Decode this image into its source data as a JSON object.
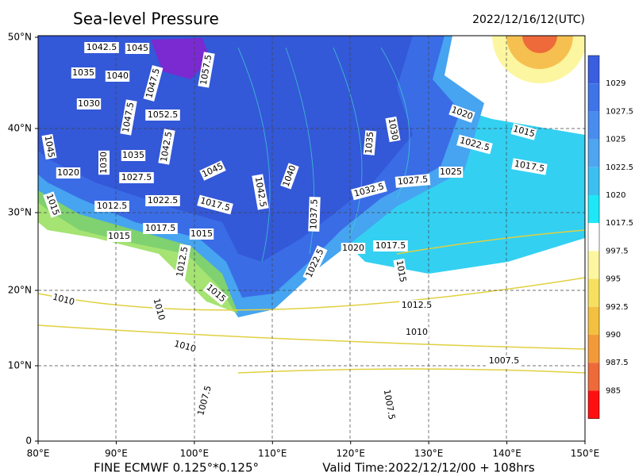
{
  "header": {
    "title": "Sea-level Pressure",
    "valid_at": "2022/12/16/12(UTC)"
  },
  "map": {
    "lat_ticks": [
      "0",
      "10°N",
      "20°N",
      "30°N",
      "40°N",
      "50°N"
    ],
    "lon_ticks": [
      "80°E",
      "90°E",
      "100°E",
      "110°E",
      "120°E",
      "130°E",
      "140°E",
      "150°E"
    ],
    "contour_labels": [
      "1042.5",
      "1045",
      "1035",
      "1040",
      "1047.5",
      "1057.5",
      "1030",
      "1047.5",
      "1052.5",
      "1045",
      "1030",
      "1035",
      "1042.5",
      "1020",
      "1027.5",
      "1045",
      "1040",
      "1042.5",
      "1015",
      "1012.5",
      "1022.5",
      "1017.5",
      "1017.5",
      "1015",
      "1015",
      "1037.5",
      "1035",
      "1030",
      "1020",
      "1022.5",
      "1015",
      "1017.5",
      "1025",
      "1027.5",
      "1032.5",
      "1020",
      "1017.5",
      "1022.5",
      "1015",
      "1012.5",
      "1015",
      "1010",
      "1010",
      "1012.5",
      "1010",
      "1010",
      "1007.5",
      "1007.5",
      "1007.5"
    ]
  },
  "colorbar": {
    "labels": [
      "1029",
      "1027.5",
      "1025",
      "1022.5",
      "1020",
      "1017.5",
      "997.5",
      "995",
      "992.5",
      "990",
      "987.5",
      "985"
    ],
    "colors": [
      "#3a5ee0",
      "#3f74e8",
      "#4a8cee",
      "#4ea6f0",
      "#3cc0f2",
      "#1ee8f8",
      "#ffffff",
      "#fcf6a0",
      "#f6e060",
      "#f4c040",
      "#f29a3a",
      "#ee6a3a",
      "#ff1010"
    ]
  },
  "footer": {
    "model": "FINE ECMWF 0.125°*0.125°",
    "valid_time": "Valid Time:2022/12/12/00 + 108hrs"
  }
}
